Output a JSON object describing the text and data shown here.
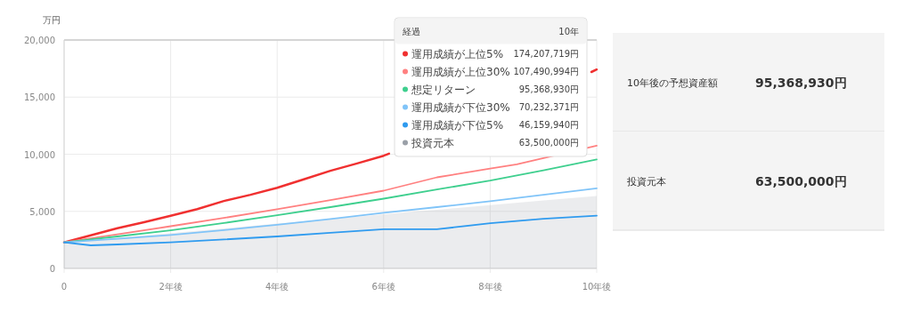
{
  "chart_data": [
    {
      "type": "line",
      "ylabel": "万円",
      "legend": "top right",
      "grid": true,
      "legend_title": "経過",
      "annotations": [
        "10年",
        "174,207,719円",
        "107,490,994円",
        "95,368,930円",
        "70,232,371円",
        "46,159,940円",
        "63,500,000円"
      ],
      "xlim": [
        0,
        10
      ],
      "xticks": [
        0,
        {
          "value": 2,
          "label": "2年後"
        },
        {
          "value": 4,
          "label": "4年後"
        },
        {
          "value": 6,
          "label": "6年後"
        },
        {
          "value": 8,
          "label": "8年後"
        },
        {
          "value": 10,
          "label": "10年後"
        }
      ],
      "ylim": [
        0,
        20000
      ],
      "yticks": [
        0,
        {
          "value": 5000,
          "label": "5,000"
        },
        {
          "value": 10000,
          "label": "10,000"
        },
        {
          "value": 15000,
          "label": "15,000"
        },
        {
          "value": 20000,
          "label": "20,000"
        }
      ],
      "series": [
        {
          "name": "運用成績が上位5%",
          "color": "#f03030",
          "x": [
            0,
            0.5,
            1,
            1.5,
            2,
            2.5,
            3,
            3.5,
            4,
            4.5,
            5,
            5.5,
            6,
            6.1,
            7,
            8,
            9,
            9.9,
            10
          ],
          "values": [
            2280,
            2900,
            3520,
            4050,
            4610,
            5200,
            5910,
            6450,
            7070,
            7800,
            8550,
            9190,
            9870,
            10050,
            null,
            null,
            null,
            17200,
            17420
          ]
        },
        {
          "name": "運用成績が上位30%",
          "color": "#ff8080",
          "x": [
            0,
            1,
            2,
            3,
            4,
            5,
            6,
            7,
            8,
            8.5,
            10
          ],
          "values": [
            2280,
            2990,
            3700,
            4420,
            5180,
            5980,
            6810,
            7980,
            8750,
            9120,
            10750
          ]
        },
        {
          "name": "想定リターン",
          "color": "#3ecf8e",
          "x": [
            0,
            1,
            2,
            3,
            4,
            5,
            6,
            7,
            8,
            9,
            10
          ],
          "values": [
            2280,
            2800,
            3340,
            3980,
            4660,
            5370,
            6110,
            6920,
            7690,
            8590,
            9540
          ]
        },
        {
          "name": "運用成績が下位30%",
          "color": "#80c4f8",
          "x": [
            0,
            1,
            2,
            3,
            4,
            5,
            6,
            7,
            8,
            9,
            10
          ],
          "values": [
            2280,
            2600,
            2930,
            3360,
            3830,
            4330,
            4870,
            5370,
            5880,
            6450,
            7020
          ]
        },
        {
          "name": "運用成績が下位5%",
          "color": "#2f9bef",
          "x": [
            0,
            0.5,
            1,
            2,
            3,
            4,
            5,
            6,
            7,
            8,
            9,
            10
          ],
          "values": [
            2280,
            2020,
            2100,
            2280,
            2540,
            2800,
            3130,
            3440,
            3430,
            3950,
            4340,
            4620
          ]
        },
        {
          "name": "投資元本",
          "type": "area",
          "color": "#9aa0a8",
          "x": [
            0,
            1,
            2,
            3,
            4,
            5,
            6,
            7,
            8,
            9,
            10
          ],
          "values": [
            2280,
            2690,
            3100,
            3500,
            3920,
            4330,
            4740,
            5140,
            5550,
            5950,
            6350
          ]
        }
      ]
    },
    {
      "type": "other",
      "annotations": [
        "10年後の予想資産額",
        "95,368,930円",
        "投資元本",
        "63,500,000円"
      ]
    }
  ]
}
